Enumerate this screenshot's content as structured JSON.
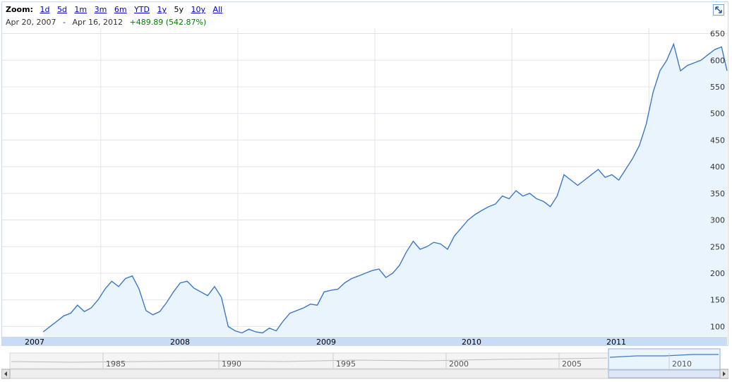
{
  "zoom": {
    "label": "Zoom:",
    "options": [
      "1d",
      "5d",
      "1m",
      "3m",
      "6m",
      "YTD",
      "1y",
      "5y",
      "10y",
      "All"
    ],
    "active": "5y"
  },
  "range": {
    "start": "Apr 20, 2007",
    "separator": "-",
    "end": "Apr 16, 2012",
    "change": "+489.89 (542.87%)"
  },
  "colors": {
    "line": "#3c78c8",
    "fill": "#eaf4fc",
    "grid": "#e0e4ea",
    "change_positive": "#008000",
    "axis_band": "#c9dcf5"
  },
  "icons": {
    "fullscreen": "expand-arrows-icon"
  },
  "chart_data": {
    "type": "area",
    "x_labels": [
      "2007",
      "2008",
      "2009",
      "2010",
      "2011"
    ],
    "y_ticks": [
      100,
      150,
      200,
      250,
      300,
      350,
      400,
      450,
      500,
      550,
      600,
      650
    ],
    "ylim": [
      82,
      660
    ],
    "grid": true,
    "series": [
      {
        "x": [
          2007.3,
          2007.35,
          2007.4,
          2007.45,
          2007.5,
          2007.55,
          2007.6,
          2007.65,
          2007.7,
          2007.75,
          2007.8,
          2007.85,
          2007.9,
          2007.95,
          2008.0,
          2008.05,
          2008.1,
          2008.15,
          2008.2,
          2008.25,
          2008.3,
          2008.35,
          2008.4,
          2008.45,
          2008.5,
          2008.55,
          2008.6,
          2008.65,
          2008.7,
          2008.75,
          2008.8,
          2008.85,
          2008.9,
          2008.95,
          2009.0,
          2009.05,
          2009.1,
          2009.15,
          2009.2,
          2009.25,
          2009.3,
          2009.35,
          2009.4,
          2009.45,
          2009.5,
          2009.55,
          2009.6,
          2009.65,
          2009.7,
          2009.75,
          2009.8,
          2009.85,
          2009.9,
          2009.95,
          2010.0,
          2010.05,
          2010.1,
          2010.15,
          2010.2,
          2010.25,
          2010.3,
          2010.35,
          2010.4,
          2010.45,
          2010.5,
          2010.55,
          2010.6,
          2010.65,
          2010.7,
          2010.75,
          2010.8,
          2010.85,
          2010.9,
          2010.95,
          2011.0,
          2011.05,
          2011.1,
          2011.15,
          2011.2,
          2011.25,
          2011.3,
          2011.35,
          2011.4,
          2011.45,
          2011.5,
          2011.55,
          2011.6,
          2011.65,
          2011.7,
          2011.75,
          2011.8,
          2011.85,
          2011.9,
          2011.95,
          2012.0,
          2012.05,
          2012.1,
          2012.15,
          2012.2,
          2012.25,
          2012.29
        ],
        "values": [
          90,
          100,
          110,
          120,
          125,
          140,
          128,
          135,
          150,
          170,
          185,
          175,
          190,
          195,
          170,
          130,
          122,
          128,
          145,
          165,
          182,
          185,
          172,
          165,
          158,
          175,
          155,
          100,
          92,
          88,
          95,
          90,
          88,
          97,
          92,
          110,
          125,
          130,
          135,
          142,
          140,
          165,
          168,
          170,
          182,
          190,
          195,
          200,
          205,
          208,
          192,
          200,
          215,
          240,
          260,
          245,
          250,
          258,
          255,
          245,
          270,
          285,
          300,
          310,
          318,
          325,
          330,
          345,
          340,
          355,
          345,
          350,
          340,
          335,
          325,
          345,
          385,
          375,
          365,
          375,
          385,
          395,
          380,
          385,
          375,
          395,
          415,
          440,
          480,
          540,
          580,
          600,
          630,
          580,
          590,
          595,
          600,
          610,
          620,
          625,
          580
        ]
      }
    ]
  },
  "overview": {
    "x_labels": [
      "1985",
      "1990",
      "1995",
      "2000",
      "2005",
      "2010"
    ]
  }
}
